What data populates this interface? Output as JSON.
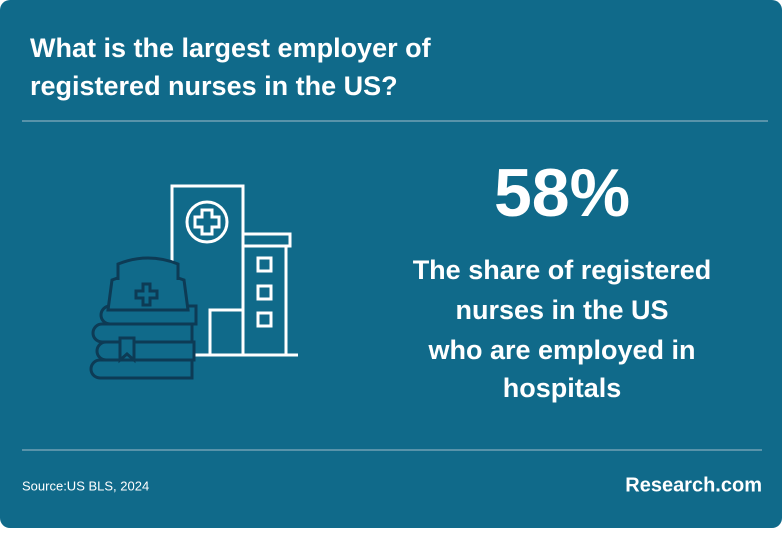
{
  "header": {
    "title": [
      "What is the largest employer of",
      "registered nurses in the US?"
    ]
  },
  "stat": {
    "value": "58%",
    "description": [
      "The share of registered",
      "nurses in the US",
      "who are employed in",
      "hospitals"
    ]
  },
  "footer": {
    "source": "Source:US BLS, 2024",
    "brand": "Research.com"
  }
}
